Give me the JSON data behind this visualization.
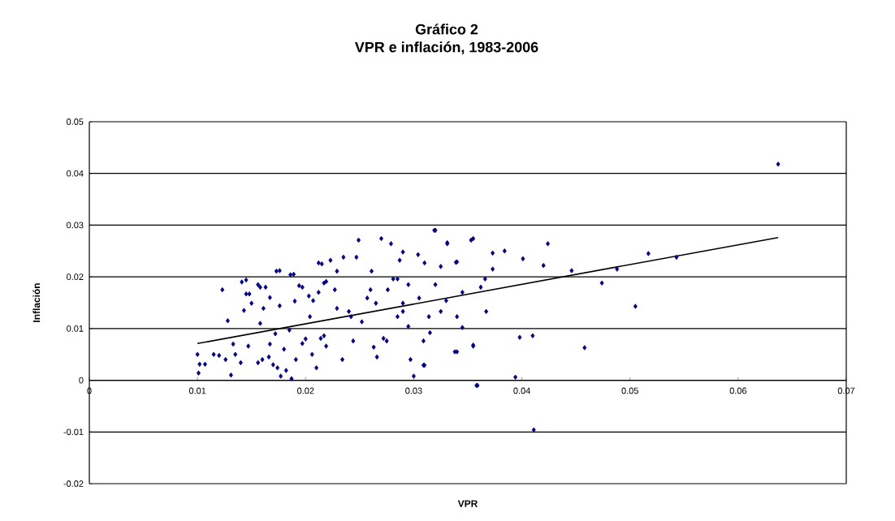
{
  "chart_data": {
    "type": "scatter",
    "title": "Gráfico 2",
    "subtitle": "VPR e inflación, 1983-2006",
    "xlabel": "VPR",
    "ylabel": "Inflación",
    "xlim": [
      0,
      0.07
    ],
    "xticks": [
      0,
      0.01,
      0.02,
      0.03,
      0.04,
      0.05,
      0.06,
      0.07
    ],
    "ylim": [
      -0.02,
      0.05
    ],
    "yticks": [
      -0.02,
      -0.01,
      0,
      0.01,
      0.02,
      0.03,
      0.04,
      0.05
    ],
    "grid": "y",
    "marker": "diamond",
    "series": [
      {
        "color": "#000080",
        "x": [
          0.01,
          0.0102,
          0.0101,
          0.0107,
          0.0115,
          0.012,
          0.0123,
          0.0128,
          0.0126,
          0.0131,
          0.0133,
          0.0135,
          0.014,
          0.0141,
          0.0145,
          0.0143,
          0.0145,
          0.0147,
          0.015,
          0.0156,
          0.0158,
          0.016,
          0.0161,
          0.0163,
          0.0167,
          0.0167,
          0.017,
          0.0172,
          0.0176,
          0.0176,
          0.0177,
          0.018,
          0.0185,
          0.0187,
          0.0189,
          0.019,
          0.0191,
          0.0197,
          0.02,
          0.0203,
          0.0206,
          0.021,
          0.0212,
          0.0215,
          0.0217,
          0.0217,
          0.0148,
          0.0158,
          0.0173,
          0.0186,
          0.0194,
          0.0207,
          0.0212,
          0.0219,
          0.0223,
          0.0227,
          0.0229,
          0.0235,
          0.0244,
          0.0247,
          0.0249,
          0.0261,
          0.0265,
          0.027,
          0.0272,
          0.0276,
          0.0279,
          0.0281,
          0.0287,
          0.029,
          0.029,
          0.0295,
          0.0297,
          0.03,
          0.0304,
          0.0305,
          0.031,
          0.0309,
          0.0314,
          0.0319,
          0.032,
          0.0325,
          0.0331,
          0.0338,
          0.0339,
          0.0345,
          0.0353,
          0.0355,
          0.0358,
          0.0366,
          0.0204,
          0.0214,
          0.0219,
          0.0197,
          0.0182,
          0.0174,
          0.0166,
          0.0156,
          0.0234,
          0.0242,
          0.0252,
          0.0257,
          0.0263,
          0.0266,
          0.0275,
          0.0285,
          0.029,
          0.0295,
          0.0315,
          0.0325,
          0.033,
          0.0345,
          0.034,
          0.0285,
          0.026,
          0.024,
          0.0229,
          0.0637,
          0.0517,
          0.0543,
          0.0488,
          0.0446,
          0.0474,
          0.0505,
          0.0458,
          0.0424,
          0.042,
          0.0401,
          0.0384,
          0.0373,
          0.0373,
          0.041,
          0.0398,
          0.0394,
          0.0411,
          0.0359,
          0.0355,
          0.0367,
          0.0362,
          0.0355,
          0.034,
          0.034,
          0.0331,
          0.032,
          0.031,
          0.0309
        ],
        "values": [
          0.005,
          0.0031,
          0.0014,
          0.0031,
          0.005,
          0.0048,
          0.0175,
          0.0115,
          0.004,
          0.001,
          0.007,
          0.005,
          0.0034,
          0.019,
          0.0194,
          0.0135,
          0.0167,
          0.0066,
          0.0149,
          0.0185,
          0.011,
          0.004,
          0.0139,
          0.018,
          0.016,
          0.007,
          0.003,
          0.009,
          0.0212,
          0.0144,
          0.0008,
          0.006,
          0.0097,
          0.0003,
          0.0205,
          0.0153,
          0.004,
          0.018,
          0.008,
          0.0163,
          0.005,
          0.0024,
          0.017,
          0.0225,
          0.0188,
          0.0086,
          0.0167,
          0.018,
          0.0211,
          0.0204,
          0.0183,
          0.0154,
          0.0227,
          0.0191,
          0.0232,
          0.0175,
          0.0211,
          0.0238,
          0.0076,
          0.0238,
          0.0271,
          0.0211,
          0.0149,
          0.0274,
          0.0081,
          0.0175,
          0.0264,
          0.0196,
          0.0232,
          0.0133,
          0.0248,
          0.0185,
          0.004,
          0.0008,
          0.0243,
          0.0159,
          0.0227,
          0.0029,
          0.0123,
          0.029,
          0.0185,
          0.022,
          0.0264,
          0.0055,
          0.0228,
          0.017,
          0.0271,
          0.0066,
          -0.001,
          0.0196,
          0.0123,
          0.0081,
          0.0066,
          0.0071,
          0.0019,
          0.0024,
          0.0045,
          0.0034,
          0.004,
          0.0123,
          0.0113,
          0.0159,
          0.0064,
          0.0045,
          0.0076,
          0.0123,
          0.0149,
          0.0104,
          0.0092,
          0.0133,
          0.0154,
          0.0102,
          0.0123,
          0.0196,
          0.0175,
          0.0133,
          0.0139,
          0.0418,
          0.0245,
          0.0238,
          0.0215,
          0.0212,
          0.0188,
          0.0143,
          0.0063,
          0.0264,
          0.0222,
          0.0235,
          0.025,
          0.0246,
          0.0215,
          0.0086,
          0.0083,
          0.0006,
          -0.0096,
          -0.001,
          0.0274,
          0.0133,
          0.018,
          0.0068,
          0.0055,
          0.0229,
          0.0266,
          0.029,
          0.0029,
          0.0076
        ]
      },
      {
        "type": "line",
        "marker": "none",
        "color": "#000000",
        "x": [
          0.01,
          0.0637
        ],
        "values": [
          0.0071,
          0.0276
        ]
      }
    ]
  }
}
